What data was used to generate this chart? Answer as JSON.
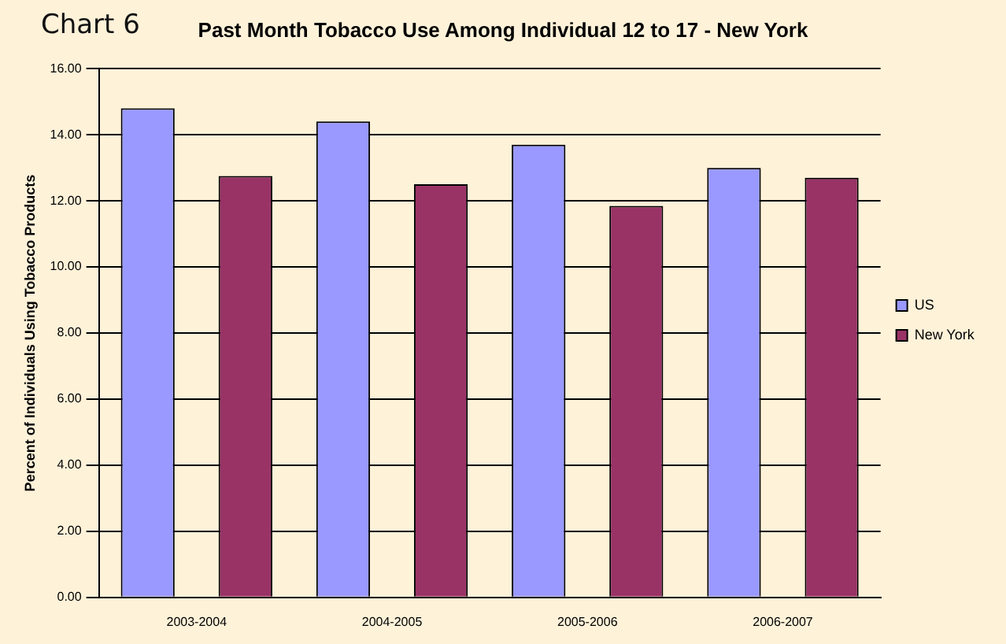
{
  "chart_data": {
    "type": "bar",
    "title": "Past Month Tobacco Use Among Individual 12 to 17 - New York",
    "ylabel": "Percent of Individuals Using Tobacco Products",
    "annotations": [
      "Chart 6"
    ],
    "categories": [
      "2003-2004",
      "2004-2005",
      "2005-2006",
      "2006-2007"
    ],
    "series": [
      {
        "name": "US",
        "color": "#9999ff",
        "values": [
          14.8,
          14.4,
          13.7,
          13.0
        ]
      },
      {
        "name": "New York",
        "color": "#993366",
        "values": [
          12.75,
          12.5,
          11.85,
          12.7
        ]
      }
    ],
    "ylim": [
      0,
      16
    ],
    "yticks": [
      {
        "value": 0,
        "label": "0.00"
      },
      {
        "value": 2,
        "label": "2.00"
      },
      {
        "value": 4,
        "label": "4.00"
      },
      {
        "value": 6,
        "label": "6.00"
      },
      {
        "value": 8,
        "label": "8.00"
      },
      {
        "value": 10,
        "label": "10.00"
      },
      {
        "value": 12,
        "label": "12.00"
      },
      {
        "value": 14,
        "label": "14.00"
      },
      {
        "value": 16,
        "label": "16.00"
      }
    ],
    "grid": "y",
    "legend": "right"
  }
}
